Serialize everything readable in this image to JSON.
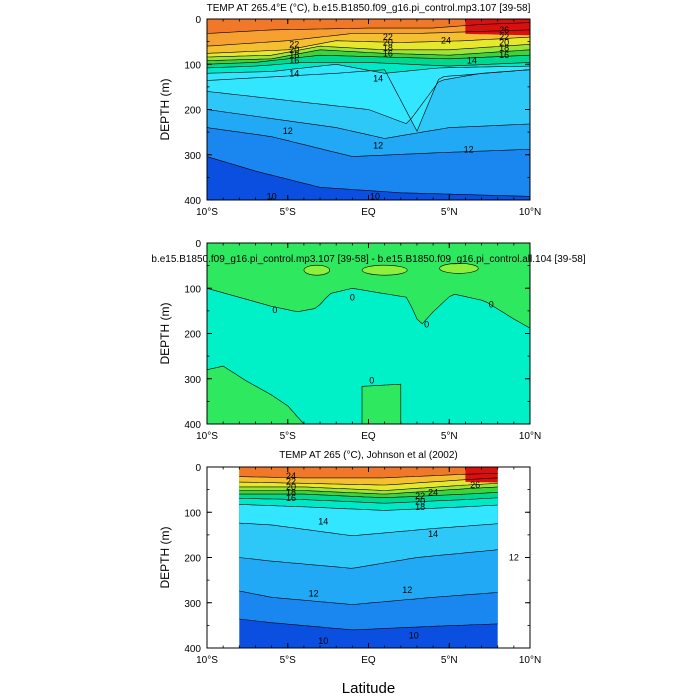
{
  "chart_data": [
    {
      "type": "contour",
      "title": "TEMP AT 265.4°E (°C), b.e15.B1850.f09_g16.pi_control.mp3.107 [39-58]",
      "ylabel": "DEPTH (m)",
      "xlabel": "",
      "ylim": [
        400,
        0
      ],
      "xlim": [
        -10,
        10
      ],
      "x_ticks": [
        "10°S",
        "5°S",
        "EQ",
        "5°N",
        "10°N"
      ],
      "y_ticks": [
        "0",
        "100",
        "200",
        "300",
        "400"
      ],
      "contour_labels": [
        "22",
        "20",
        "18",
        "16",
        "14",
        "22",
        "20",
        "18",
        "16",
        "24",
        "26",
        "22",
        "20",
        "18",
        "16",
        "14",
        "14",
        "12",
        "12",
        "12",
        "10",
        "10"
      ],
      "data_limit": [
        -10,
        10
      ]
    },
    {
      "type": "contour",
      "title": "b.e15.B1850.f09_g16.pi_control.mp3.107 [39-58] - b.e15.B1850.f09_g16.pi_control.all.104 [39-58]",
      "ylabel": "DEPTH (m)",
      "xlabel": "",
      "ylim": [
        400,
        0
      ],
      "xlim": [
        -10,
        10
      ],
      "x_ticks": [
        "10°S",
        "5°S",
        "EQ",
        "5°N",
        "10°N"
      ],
      "y_ticks": [
        "0",
        "100",
        "200",
        "300",
        "400"
      ],
      "contour_labels": [
        "0",
        "0",
        "0",
        "0",
        "0"
      ],
      "data_limit": [
        -10,
        10
      ]
    },
    {
      "type": "contour",
      "title": "TEMP AT 265 (°C), Johnson et al (2002)",
      "ylabel": "DEPTH (m)",
      "xlabel": "Latitude",
      "ylim": [
        400,
        0
      ],
      "xlim": [
        -10,
        10
      ],
      "x_ticks": [
        "10°S",
        "5°S",
        "EQ",
        "5°N",
        "10°N"
      ],
      "y_ticks": [
        "0",
        "100",
        "200",
        "300",
        "400"
      ],
      "contour_labels": [
        "24",
        "22",
        "20",
        "18",
        "16",
        "22",
        "20",
        "18",
        "26",
        "24",
        "14",
        "14",
        "12",
        "12",
        "12",
        "10",
        "10"
      ],
      "data_limit": [
        -8,
        8
      ]
    }
  ]
}
